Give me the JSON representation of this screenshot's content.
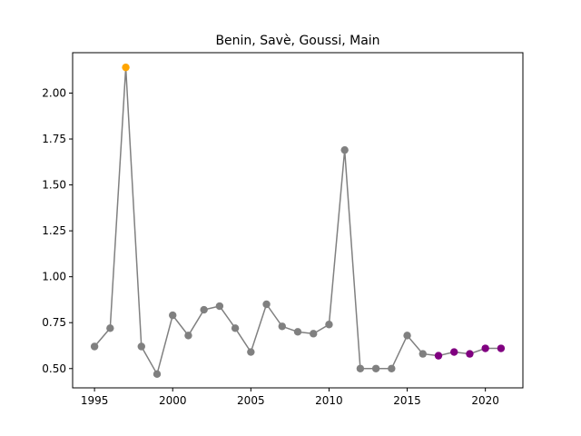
{
  "chart_data": {
    "type": "line",
    "title": "Benin, Savè, Goussi, Main",
    "xlabel": "",
    "ylabel": "",
    "xlim": [
      1993.6,
      2022.4
    ],
    "ylim": [
      0.395,
      2.22
    ],
    "x_ticks": [
      "1995",
      "2000",
      "2005",
      "2010",
      "2015",
      "2020"
    ],
    "y_ticks": [
      "0.50",
      "0.75",
      "1.00",
      "1.25",
      "1.50",
      "1.75",
      "2.00"
    ],
    "grid": false,
    "line_color": "#808080",
    "series": [
      {
        "x": [
          1995,
          1996,
          1997,
          1998,
          1999,
          2000,
          2001,
          2002,
          2003,
          2004,
          2005,
          2006,
          2007,
          2008,
          2009,
          2010,
          2011,
          2012,
          2013,
          2014,
          2015,
          2016,
          2017,
          2018,
          2019,
          2020,
          2021
        ],
        "y": [
          0.62,
          0.72,
          2.14,
          0.62,
          0.47,
          0.79,
          0.68,
          0.82,
          0.84,
          0.72,
          0.59,
          0.85,
          0.73,
          0.7,
          0.69,
          0.74,
          1.69,
          0.5,
          0.5,
          0.5,
          0.68,
          0.58,
          0.57,
          0.59,
          0.58,
          0.61,
          0.61
        ],
        "point_colors": [
          "#808080",
          "#808080",
          "#ffa500",
          "#808080",
          "#808080",
          "#808080",
          "#808080",
          "#808080",
          "#808080",
          "#808080",
          "#808080",
          "#808080",
          "#808080",
          "#808080",
          "#808080",
          "#808080",
          "#808080",
          "#808080",
          "#808080",
          "#808080",
          "#808080",
          "#808080",
          "#800080",
          "#800080",
          "#800080",
          "#800080",
          "#800080"
        ]
      }
    ]
  }
}
